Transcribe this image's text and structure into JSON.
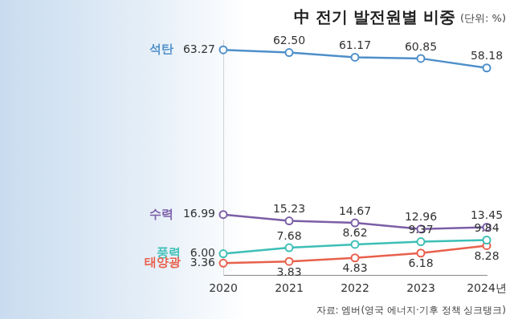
{
  "chart_data": {
    "type": "line",
    "title": "中 전기 발전원별 비중",
    "subtitle": "(단위: %)",
    "source": "자료: 엠버(영국 에너지·기후 정책 싱크탱크)",
    "categories": [
      "2020",
      "2021",
      "2022",
      "2023",
      "2024년"
    ],
    "series": [
      {
        "name": "석탄",
        "color": "#4f8fc9",
        "values": [
          63.27,
          62.5,
          61.17,
          60.85,
          58.18
        ],
        "value_labels": [
          "63.27",
          "62.50",
          "61.17",
          "60.85",
          "58.18"
        ]
      },
      {
        "name": "수력",
        "color": "#7b5ea7",
        "values": [
          16.99,
          15.23,
          14.67,
          12.96,
          13.45
        ],
        "value_labels": [
          "16.99",
          "15.23",
          "14.67",
          "12.96",
          "13.45"
        ]
      },
      {
        "name": "풍력",
        "color": "#3cbfb6",
        "values": [
          6.0,
          7.68,
          8.62,
          9.37,
          9.84
        ],
        "value_labels": [
          "6.00",
          "7.68",
          "8.62",
          "9.37",
          "9.84"
        ]
      },
      {
        "name": "태양광",
        "color": "#e8604c",
        "values": [
          3.36,
          3.83,
          4.83,
          6.18,
          8.28
        ],
        "value_labels": [
          "3.36",
          "3.83",
          "4.83",
          "6.18",
          "8.28"
        ]
      }
    ],
    "ylim": [
      0,
      66
    ],
    "tick_labels": "x",
    "grid": false,
    "data_labels": true,
    "marker": "circle"
  }
}
